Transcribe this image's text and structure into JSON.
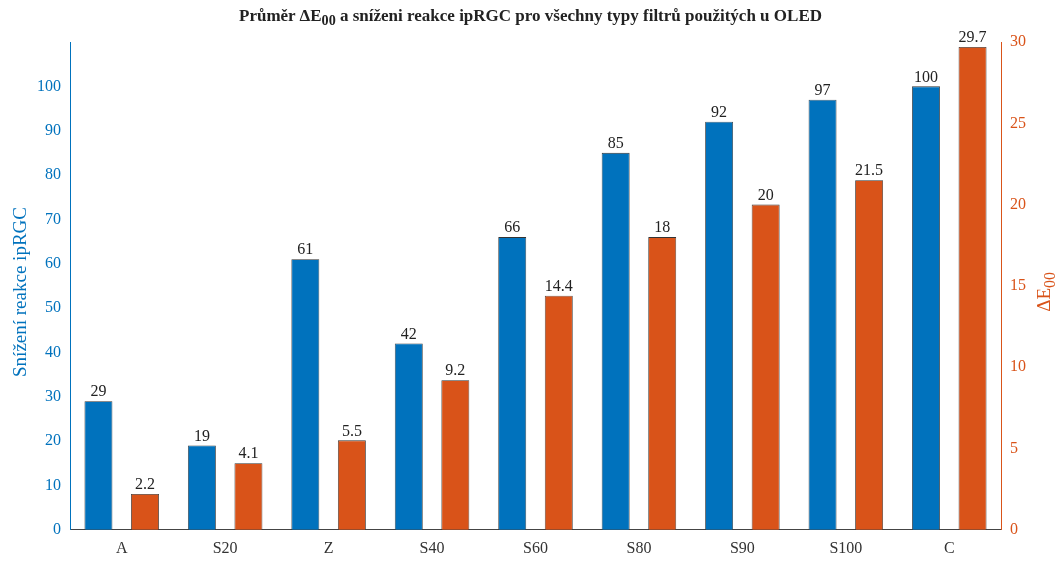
{
  "chart_data": {
    "type": "bar",
    "title": "Průměr ΔE$_{00}$ a sníženi reakce ipRGC pro všechny typy filtrů použitých u OLED",
    "ylabel": "Snížení reakce ipRGC",
    "y2label": "ΔE$_{00}$",
    "categories": [
      "A",
      "S20",
      "Z",
      "S40",
      "S60",
      "S80",
      "S90",
      "S100",
      "C"
    ],
    "series": [
      {
        "color": "#0072bd",
        "values": [
          29,
          19,
          61,
          42,
          66,
          85,
          92,
          97,
          100
        ]
      },
      {
        "color": "#d95319",
        "axis": "y2",
        "values": [
          2.2,
          4.1,
          5.5,
          9.2,
          14.4,
          18,
          20,
          21.5,
          29.7
        ]
      }
    ],
    "ylim": [
      0,
      110
    ],
    "yticks": [
      0,
      10,
      20,
      30,
      40,
      50,
      60,
      70,
      80,
      90,
      100
    ],
    "y2lim": [
      0,
      30
    ],
    "y2ticks": [
      0,
      5,
      10,
      15,
      20,
      25,
      30
    ],
    "grid": false,
    "legend": false,
    "data_labels": true
  }
}
